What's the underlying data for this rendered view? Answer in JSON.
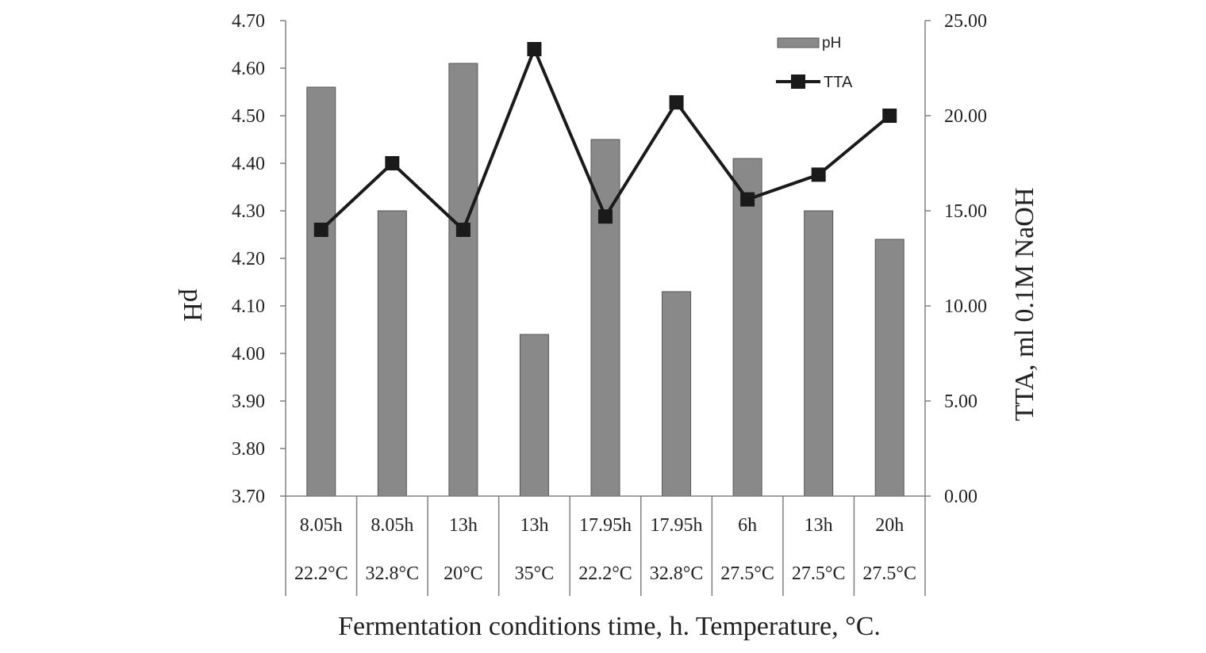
{
  "chart_data": {
    "type": "bar",
    "categories": [
      [
        "8.05h",
        "22.2°C"
      ],
      [
        "8.05h",
        "32.8°C"
      ],
      [
        "13h",
        "20°C"
      ],
      [
        "13h",
        "35°C"
      ],
      [
        "17.95h",
        "22.2°C"
      ],
      [
        "17.95h",
        "32.8°C"
      ],
      [
        "6h",
        "27.5°C"
      ],
      [
        "13h",
        "27.5°C"
      ],
      [
        "20h",
        "27.5°C"
      ]
    ],
    "series": [
      {
        "name": "pH",
        "type": "bar",
        "axis": "left",
        "color": "#898989",
        "values": [
          4.56,
          4.3,
          4.61,
          4.04,
          4.45,
          4.13,
          4.41,
          4.3,
          4.24
        ]
      },
      {
        "name": "TTA",
        "type": "line",
        "axis": "right",
        "color": "#1a1a1a",
        "values": [
          14.0,
          17.5,
          14.0,
          23.5,
          14.7,
          20.7,
          15.6,
          16.9,
          20.0
        ]
      }
    ],
    "xlabel": "Fermentation conditions time, h. Temperature, °C.",
    "ylabel_left": "pH",
    "ylabel_right": "TTA, ml 0.1M NaOH",
    "ylim_left": [
      3.7,
      4.7
    ],
    "yticks_left": [
      "3.70",
      "3.80",
      "3.90",
      "4.00",
      "4.10",
      "4.20",
      "4.30",
      "4.40",
      "4.50",
      "4.60",
      "4.70"
    ],
    "ylim_right": [
      0,
      25
    ],
    "yticks_right": [
      "0.00",
      "5.00",
      "10.00",
      "15.00",
      "20.00",
      "25.00"
    ],
    "grid": false,
    "legend_position": "top-right"
  }
}
